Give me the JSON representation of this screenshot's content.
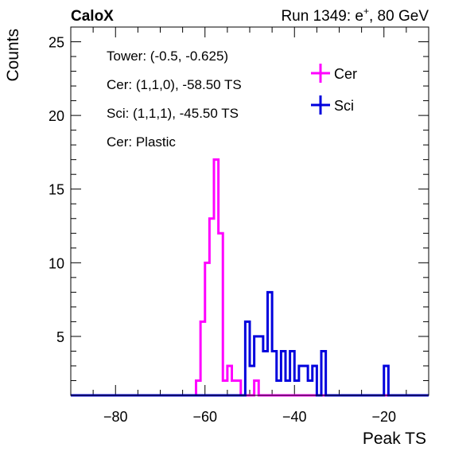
{
  "header": {
    "brand": "CaloX",
    "run_prefix": "Run 1349: e",
    "run_sup": "+",
    "run_suffix": ", 80 GeV"
  },
  "chart_data": {
    "type": "histogram",
    "xlabel": "Peak TS",
    "ylabel": "Counts",
    "xlim": [
      -90,
      -10
    ],
    "ylim": [
      1,
      26
    ],
    "x_ticks": [
      -80,
      -60,
      -40,
      -20
    ],
    "x_tick_labels": [
      "−80",
      "−60",
      "−40",
      "−20"
    ],
    "y_ticks": [
      5,
      10,
      15,
      20,
      25
    ],
    "y_tick_labels": [
      "5",
      "10",
      "15",
      "20",
      "25"
    ],
    "bin_width": 1,
    "grid": false,
    "annotations": [
      "Tower: (-0.5, -0.625)",
      "Cer: (1,1,0), -58.50 TS",
      "Sci: (1,1,1), -45.50 TS",
      "Cer: Plastic"
    ],
    "legend": {
      "placement": "top-right",
      "entries": [
        "Cer",
        "Sci"
      ]
    },
    "series": [
      {
        "name": "Cer",
        "color": "#ff00ff",
        "bins": [
          [
            -62,
            2
          ],
          [
            -61,
            6
          ],
          [
            -60,
            10
          ],
          [
            -59,
            13
          ],
          [
            -58,
            17
          ],
          [
            -57,
            12
          ],
          [
            -56,
            2
          ],
          [
            -55,
            3
          ],
          [
            -54,
            2
          ],
          [
            -53,
            2
          ],
          [
            -49,
            2
          ],
          [
            -48,
            1
          ]
        ]
      },
      {
        "name": "Sci",
        "color": "#0000dd",
        "bins": [
          [
            -54,
            1
          ],
          [
            -53,
            1
          ],
          [
            -52,
            1
          ],
          [
            -51,
            6
          ],
          [
            -50,
            3
          ],
          [
            -49,
            5
          ],
          [
            -48,
            5
          ],
          [
            -47,
            4
          ],
          [
            -46,
            8
          ],
          [
            -45,
            4
          ],
          [
            -44,
            2
          ],
          [
            -43,
            4
          ],
          [
            -42,
            2
          ],
          [
            -41,
            4
          ],
          [
            -40,
            2
          ],
          [
            -39,
            3
          ],
          [
            -38,
            3
          ],
          [
            -37,
            2
          ],
          [
            -36,
            3
          ],
          [
            -35,
            1
          ],
          [
            -34,
            4
          ],
          [
            -33,
            1
          ],
          [
            -32,
            1
          ],
          [
            -31,
            1
          ],
          [
            -30,
            1
          ],
          [
            -29,
            1
          ],
          [
            -28,
            1
          ],
          [
            -27,
            1
          ],
          [
            -26,
            1
          ],
          [
            -25,
            1
          ],
          [
            -24,
            1
          ],
          [
            -23,
            1
          ],
          [
            -22,
            1
          ],
          [
            -21,
            1
          ],
          [
            -20,
            3
          ],
          [
            -19,
            1
          ]
        ]
      }
    ]
  }
}
